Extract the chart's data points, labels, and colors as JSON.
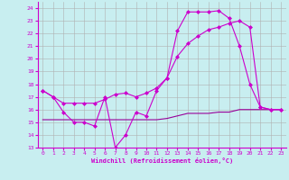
{
  "xlabel": "Windchill (Refroidissement éolien,°C)",
  "bg_color": "#c8eef0",
  "grid_color": "#b0b0b0",
  "line_color1": "#cc00cc",
  "line_color2": "#990099",
  "xlim": [
    -0.5,
    23.5
  ],
  "ylim": [
    13,
    24.5
  ],
  "yticks": [
    13,
    14,
    15,
    16,
    17,
    18,
    19,
    20,
    21,
    22,
    23,
    24
  ],
  "xticks": [
    0,
    1,
    2,
    3,
    4,
    5,
    6,
    7,
    8,
    9,
    10,
    11,
    12,
    13,
    14,
    15,
    16,
    17,
    18,
    19,
    20,
    21,
    22,
    23
  ],
  "series1_x": [
    0,
    1,
    2,
    3,
    4,
    5,
    6,
    7,
    8,
    9,
    10,
    11,
    12,
    13,
    14,
    15,
    16,
    17,
    18,
    19,
    20,
    21,
    22,
    23
  ],
  "series1_y": [
    17.5,
    17.0,
    15.8,
    15.0,
    15.0,
    14.7,
    17.0,
    13.0,
    14.0,
    15.8,
    15.5,
    17.5,
    18.5,
    22.2,
    23.7,
    23.7,
    23.7,
    23.8,
    23.2,
    21.0,
    18.0,
    16.2,
    16.0,
    16.0
  ],
  "series2_x": [
    0,
    1,
    2,
    3,
    4,
    5,
    6,
    7,
    8,
    9,
    10,
    11,
    12,
    13,
    14,
    15,
    16,
    17,
    18,
    19,
    20,
    21,
    22,
    23
  ],
  "series2_y": [
    17.5,
    17.0,
    16.5,
    16.5,
    16.5,
    16.5,
    16.8,
    17.2,
    17.3,
    17.0,
    17.3,
    17.7,
    18.5,
    20.2,
    21.2,
    21.8,
    22.3,
    22.5,
    22.8,
    23.0,
    22.5,
    16.2,
    16.0,
    16.0
  ],
  "series3_x": [
    0,
    1,
    2,
    3,
    4,
    5,
    6,
    7,
    8,
    9,
    10,
    11,
    12,
    13,
    14,
    15,
    16,
    17,
    18,
    19,
    20,
    21,
    22,
    23
  ],
  "series3_y": [
    15.2,
    15.2,
    15.2,
    15.2,
    15.2,
    15.2,
    15.2,
    15.2,
    15.2,
    15.2,
    15.2,
    15.2,
    15.3,
    15.5,
    15.7,
    15.7,
    15.7,
    15.8,
    15.8,
    16.0,
    16.0,
    16.0,
    16.0,
    16.0
  ]
}
